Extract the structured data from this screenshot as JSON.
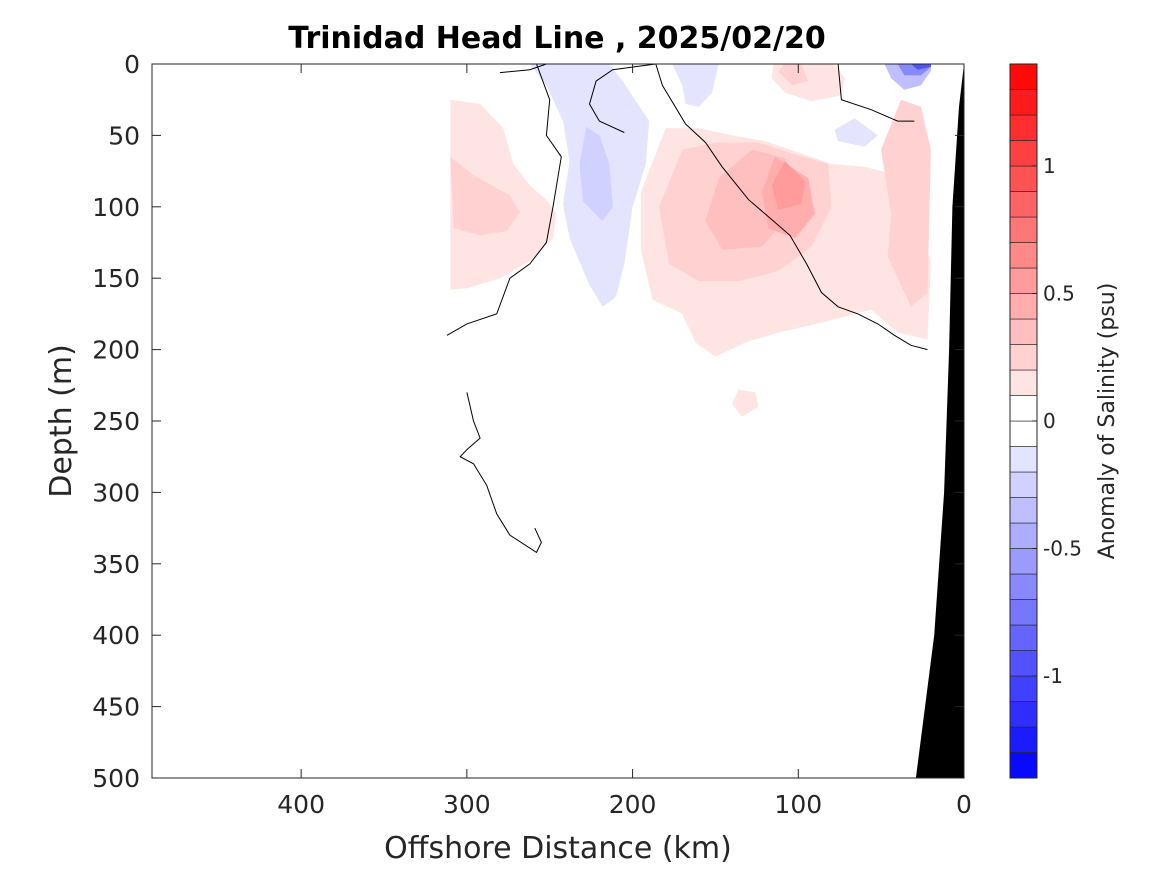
{
  "chart_data": {
    "type": "heatmap",
    "title": "Trinidad Head Line , 2025/02/20",
    "xlabel": "Offshore Distance (km)",
    "ylabel": "Depth (m)",
    "xlim": [
      490,
      0
    ],
    "ylim": [
      0,
      500
    ],
    "x_reversed": true,
    "y_reversed": true,
    "xticks": [
      "400",
      "300",
      "200",
      "100",
      "0"
    ],
    "yticks": [
      "0",
      "50",
      "100",
      "150",
      "200",
      "250",
      "300",
      "350",
      "400",
      "450",
      "500"
    ],
    "colorbar": {
      "label": "Anomaly of Salinity (psu)",
      "range": [
        -1.4,
        1.4
      ],
      "step": 0.1,
      "ticks": [
        "1",
        "0.5",
        "0",
        "-0.5",
        "-1"
      ],
      "negative_color": "#0000ff",
      "positive_color": "#ff0000"
    },
    "bathymetry_color": "#000000",
    "anomaly_regions": [
      {
        "value": 0.15,
        "points": [
          [
            310,
            25
          ],
          [
            292,
            28
          ],
          [
            278,
            45
          ],
          [
            272,
            70
          ],
          [
            262,
            85
          ],
          [
            252,
            95
          ],
          [
            246,
            105
          ],
          [
            248,
            122
          ],
          [
            262,
            138
          ],
          [
            280,
            150
          ],
          [
            300,
            157
          ],
          [
            310,
            158
          ]
        ]
      },
      {
        "value": 0.25,
        "points": [
          [
            310,
            65
          ],
          [
            296,
            78
          ],
          [
            274,
            92
          ],
          [
            268,
            104
          ],
          [
            276,
            117
          ],
          [
            292,
            120
          ],
          [
            308,
            115
          ]
        ]
      },
      {
        "value": -0.15,
        "points": [
          [
            262,
            0
          ],
          [
            252,
            15
          ],
          [
            242,
            40
          ],
          [
            238,
            68
          ],
          [
            242,
            98
          ],
          [
            238,
            122
          ],
          [
            226,
            155
          ],
          [
            218,
            170
          ],
          [
            210,
            163
          ],
          [
            205,
            140
          ],
          [
            200,
            100
          ],
          [
            192,
            70
          ],
          [
            190,
            40
          ],
          [
            206,
            12
          ],
          [
            214,
            0
          ]
        ]
      },
      {
        "value": -0.25,
        "points": [
          [
            228,
            44
          ],
          [
            232,
            70
          ],
          [
            230,
            96
          ],
          [
            218,
            110
          ],
          [
            212,
            100
          ],
          [
            214,
            70
          ],
          [
            220,
            50
          ]
        ]
      },
      {
        "value": -0.15,
        "points": [
          [
            176,
            0
          ],
          [
            170,
            15
          ],
          [
            168,
            28
          ],
          [
            160,
            30
          ],
          [
            152,
            20
          ],
          [
            148,
            0
          ]
        ]
      },
      {
        "value": 0.15,
        "points": [
          [
            180,
            45
          ],
          [
            195,
            90
          ],
          [
            195,
            130
          ],
          [
            188,
            165
          ],
          [
            170,
            175
          ],
          [
            162,
            195
          ],
          [
            150,
            205
          ],
          [
            132,
            195
          ],
          [
            112,
            188
          ],
          [
            82,
            180
          ],
          [
            56,
            172
          ],
          [
            40,
            188
          ],
          [
            22,
            193
          ],
          [
            20,
            140
          ],
          [
            24,
            120
          ],
          [
            30,
            90
          ],
          [
            40,
            78
          ],
          [
            60,
            72
          ],
          [
            80,
            70
          ],
          [
            100,
            62
          ],
          [
            120,
            54
          ],
          [
            140,
            50
          ],
          [
            160,
            45
          ]
        ]
      },
      {
        "value": 0.25,
        "points": [
          [
            170,
            60
          ],
          [
            184,
            100
          ],
          [
            178,
            140
          ],
          [
            160,
            152
          ],
          [
            136,
            152
          ],
          [
            112,
            145
          ],
          [
            92,
            128
          ],
          [
            80,
            100
          ],
          [
            82,
            70
          ],
          [
            100,
            64
          ],
          [
            124,
            55
          ],
          [
            150,
            55
          ]
        ]
      },
      {
        "value": 0.35,
        "points": [
          [
            128,
            60
          ],
          [
            148,
            80
          ],
          [
            156,
            110
          ],
          [
            146,
            130
          ],
          [
            122,
            128
          ],
          [
            110,
            112
          ],
          [
            102,
            88
          ],
          [
            108,
            66
          ]
        ]
      },
      {
        "value": 0.45,
        "points": [
          [
            114,
            65
          ],
          [
            94,
            80
          ],
          [
            90,
            105
          ],
          [
            102,
            122
          ],
          [
            118,
            115
          ],
          [
            122,
            90
          ]
        ]
      },
      {
        "value": 0.55,
        "points": [
          [
            108,
            68
          ],
          [
            96,
            82
          ],
          [
            98,
            98
          ],
          [
            112,
            102
          ],
          [
            116,
            85
          ]
        ]
      },
      {
        "value": 0.25,
        "points": [
          [
            38,
            25
          ],
          [
            50,
            60
          ],
          [
            44,
            105
          ],
          [
            46,
            135
          ],
          [
            32,
            170
          ],
          [
            22,
            160
          ],
          [
            20,
            60
          ],
          [
            26,
            30
          ]
        ]
      },
      {
        "value": 0.15,
        "points": [
          [
            78,
            0
          ],
          [
            72,
            10
          ],
          [
            74,
            22
          ],
          [
            92,
            26
          ],
          [
            108,
            20
          ],
          [
            116,
            10
          ],
          [
            115,
            0
          ]
        ]
      },
      {
        "value": 0.25,
        "points": [
          [
            98,
            0
          ],
          [
            94,
            12
          ],
          [
            104,
            15
          ],
          [
            112,
            5
          ],
          [
            108,
            0
          ]
        ]
      },
      {
        "value": -0.15,
        "points": [
          [
            66,
            38
          ],
          [
            78,
            46
          ],
          [
            76,
            54
          ],
          [
            60,
            58
          ],
          [
            52,
            50
          ]
        ]
      },
      {
        "value": 0.15,
        "points": [
          [
            136,
            228
          ],
          [
            140,
            238
          ],
          [
            134,
            247
          ],
          [
            124,
            240
          ],
          [
            126,
            230
          ]
        ]
      },
      {
        "value": -0.35,
        "points": [
          [
            48,
            0
          ],
          [
            44,
            10
          ],
          [
            36,
            18
          ],
          [
            26,
            15
          ],
          [
            20,
            5
          ],
          [
            20,
            0
          ]
        ]
      },
      {
        "value": -0.65,
        "points": [
          [
            40,
            0
          ],
          [
            36,
            8
          ],
          [
            26,
            8
          ],
          [
            20,
            2
          ],
          [
            20,
            0
          ]
        ]
      },
      {
        "value": -0.95,
        "points": [
          [
            32,
            0
          ],
          [
            28,
            4
          ],
          [
            20,
            2
          ],
          [
            20,
            0
          ]
        ]
      }
    ],
    "zero_contours": [
      [
        [
          258,
          0
        ],
        [
          250,
          25
        ],
        [
          252,
          50
        ],
        [
          243,
          65
        ],
        [
          248,
          100
        ],
        [
          252,
          125
        ],
        [
          262,
          140
        ],
        [
          274,
          150
        ],
        [
          282,
          175
        ],
        [
          300,
          182
        ],
        [
          312,
          190
        ]
      ],
      [
        [
          186,
          0
        ],
        [
          182,
          15
        ],
        [
          168,
          42
        ],
        [
          156,
          55
        ],
        [
          146,
          72
        ],
        [
          130,
          95
        ],
        [
          120,
          105
        ],
        [
          105,
          120
        ],
        [
          95,
          140
        ],
        [
          86,
          160
        ],
        [
          76,
          170
        ],
        [
          64,
          175
        ],
        [
          52,
          182
        ],
        [
          42,
          190
        ],
        [
          32,
          197
        ],
        [
          22,
          200
        ]
      ],
      [
        [
          76,
          0
        ],
        [
          74,
          25
        ],
        [
          56,
          32
        ],
        [
          40,
          40
        ],
        [
          30,
          40
        ]
      ],
      [
        [
          252,
          0
        ],
        [
          262,
          4
        ],
        [
          280,
          6
        ]
      ],
      [
        [
          300,
          230
        ],
        [
          296,
          250
        ],
        [
          292,
          262
        ],
        [
          300,
          270
        ],
        [
          304,
          275
        ],
        [
          296,
          280
        ],
        [
          288,
          295
        ],
        [
          282,
          315
        ],
        [
          274,
          330
        ],
        [
          258,
          342
        ],
        [
          255,
          335
        ],
        [
          259,
          325
        ]
      ],
      [
        [
          186,
          0
        ],
        [
          212,
          4
        ],
        [
          222,
          12
        ],
        [
          226,
          28
        ],
        [
          220,
          40
        ],
        [
          205,
          48
        ]
      ]
    ]
  }
}
